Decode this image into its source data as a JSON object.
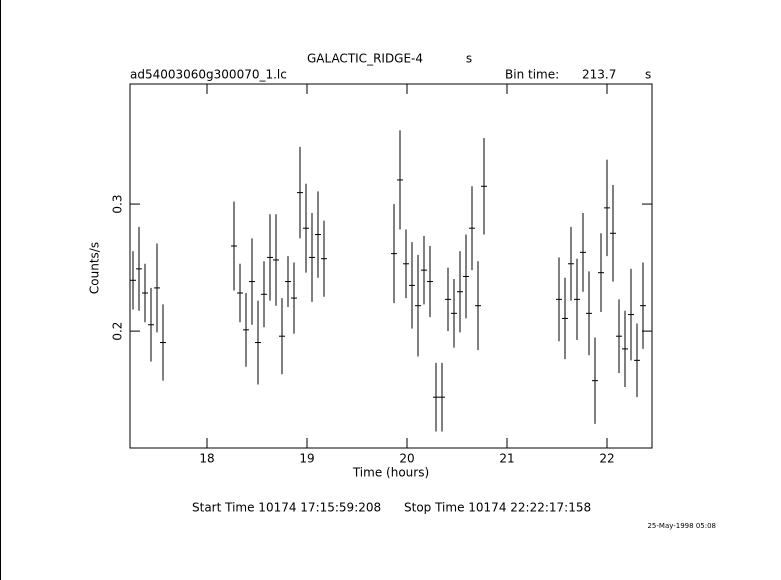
{
  "chart_data": {
    "type": "errorbar",
    "title": "GALACTIC_RIDGE-4",
    "title_unit": "s",
    "file": "ad54003060g300070_1.lc",
    "bin_label": "Bin time:",
    "bin_time": 213.7,
    "bin_unit": "s",
    "ylabel": "Counts/s",
    "xlabel": "Time (hours)",
    "start": "Start Time 10174  17:15:59:208",
    "stop": "Stop Time 10174  22:22:17:158",
    "date": "25-May-1998 05:08",
    "xlim": [
      17.23,
      22.45
    ],
    "ylim": [
      0.108,
      0.3945
    ],
    "xticks": [
      18,
      19,
      20,
      21,
      22
    ],
    "yticks": [
      0.2,
      0.3
    ],
    "series": [
      {
        "color": "#000000",
        "xerr": 0.03,
        "x": [
          17.26,
          17.32,
          17.38,
          17.44,
          17.5,
          17.56,
          18.27,
          18.33,
          18.39,
          18.45,
          18.51,
          18.57,
          18.63,
          18.69,
          18.75,
          18.81,
          18.87,
          18.93,
          18.99,
          19.05,
          19.11,
          19.17,
          19.87,
          19.93,
          19.99,
          20.05,
          20.11,
          20.17,
          20.23,
          20.29,
          20.35,
          20.41,
          20.47,
          20.53,
          20.59,
          20.65,
          20.71,
          20.77,
          21.52,
          21.58,
          21.64,
          21.7,
          21.76,
          21.82,
          21.88,
          21.94,
          22.0,
          22.06,
          22.12,
          22.18,
          22.24,
          22.3,
          22.36
        ],
        "values": [
          0.24,
          0.249,
          0.23,
          0.205,
          0.234,
          0.191,
          0.267,
          0.23,
          0.201,
          0.239,
          0.191,
          0.229,
          0.258,
          0.256,
          0.196,
          0.239,
          0.226,
          0.309,
          0.281,
          0.258,
          0.276,
          0.257,
          0.261,
          0.319,
          0.253,
          0.236,
          0.22,
          0.248,
          0.239,
          0.148,
          0.148,
          0.225,
          0.214,
          0.231,
          0.243,
          0.281,
          0.22,
          0.314,
          0.225,
          0.21,
          0.253,
          0.225,
          0.262,
          0.214,
          0.161,
          0.246,
          0.297,
          0.277,
          0.196,
          0.186,
          0.213,
          0.177,
          0.22
        ],
        "yerr": [
          0.023,
          0.033,
          0.023,
          0.029,
          0.035,
          0.03,
          0.035,
          0.023,
          0.029,
          0.034,
          0.033,
          0.026,
          0.034,
          0.036,
          0.03,
          0.02,
          0.028,
          0.036,
          0.035,
          0.035,
          0.034,
          0.03,
          0.039,
          0.039,
          0.027,
          0.034,
          0.04,
          0.027,
          0.028,
          0.027,
          0.027,
          0.025,
          0.027,
          0.032,
          0.033,
          0.033,
          0.035,
          0.038,
          0.033,
          0.032,
          0.029,
          0.032,
          0.031,
          0.033,
          0.034,
          0.031,
          0.038,
          0.038,
          0.029,
          0.03,
          0.036,
          0.029,
          0.034
        ]
      }
    ]
  }
}
